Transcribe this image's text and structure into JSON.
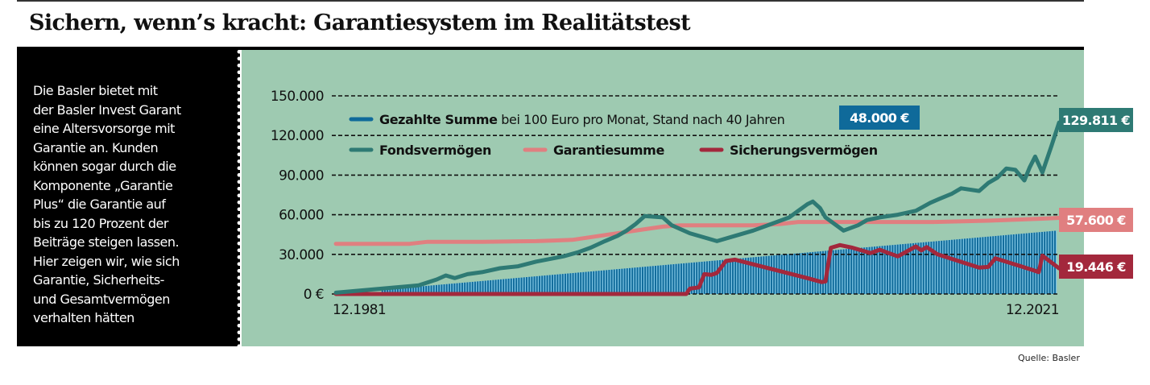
{
  "title": "Sichern, wenn’s kracht: Garantiesystem im Realitätstest",
  "intro_lines": [
    "Die Basler bietet mit",
    "der Basler Invest Garant",
    "eine Altersvorsorge mit",
    "Garantie an. Kunden",
    "können sogar durch die",
    "Komponente „Garantie",
    "Plus“ die Garantie auf",
    "bis zu 120 Prozent der",
    "Beiträge steigen lassen.",
    "Hier zeigen wir, wie sich",
    "Garantie, Sicherheits-",
    "und Gesamtvermögen",
    "verhalten hätten"
  ],
  "source": "Quelle: Basler",
  "colors": {
    "background": "#9ecab1",
    "paid": "#0f6a9a",
    "paid_stripe": "#7ec4e4",
    "fonds": "#2e7a74",
    "garantie": "#e07f80",
    "sicherung": "#a3283c"
  },
  "chart_data": {
    "type": "line",
    "title": "Sichern, wenn’s kracht: Garantiesystem im Realitätstest",
    "xlabel": "",
    "ylabel": "",
    "xlim": [
      1981.917,
      2021.917
    ],
    "ylim": [
      0,
      150000
    ],
    "grid": true,
    "legend_position": "top",
    "x_tick_labels": [
      "12.1981",
      "12.2021"
    ],
    "y_tick_labels": [
      "0 €",
      "30.000",
      "60.000",
      "90.000",
      "120.000",
      "150.000"
    ],
    "y_tick_values": [
      0,
      30000,
      60000,
      90000,
      120000,
      150000
    ],
    "legend": {
      "paid_bold": "Gezahlte Summe",
      "paid_rest": " bei 100 Euro pro Monat, Stand nach 40 Jahren",
      "fonds": "Fondsvermögen",
      "garantie": "Garantiesumme",
      "sicherung": "Sicherungsvermögen"
    },
    "end_labels": {
      "paid": "48.000 €",
      "fonds": "129.811 €",
      "garantie": "57.600 €",
      "sicherung": "19.446 €"
    },
    "series": [
      {
        "name": "Gezahlte Summe",
        "kind": "bars",
        "x": [
          1981.917,
          2021.917
        ],
        "values": [
          0,
          48000
        ]
      },
      {
        "name": "Fondsvermögen",
        "kind": "line",
        "x": [
          1981.92,
          1984.0,
          1986.5,
          1987.5,
          1988.0,
          1988.5,
          1989.2,
          1990.0,
          1991.0,
          1992.0,
          1993.0,
          1994.5,
          1995.3,
          1996.0,
          1996.8,
          1997.5,
          1998.0,
          1998.5,
          1999.0,
          2000.0,
          2000.5,
          2001.5,
          2002.5,
          2003.0,
          2004.0,
          2005.0,
          2006.0,
          2007.0,
          2007.5,
          2008.0,
          2008.3,
          2008.7,
          2009.0,
          2010.0,
          2010.8,
          2011.3,
          2012.0,
          2013.0,
          2014.0,
          2014.8,
          2015.3,
          2016.0,
          2016.5,
          2017.5,
          2018.0,
          2018.5,
          2019.0,
          2019.5,
          2020.0,
          2020.3,
          2020.6,
          2021.0,
          2021.5,
          2021.92
        ],
        "values": [
          1000,
          3500,
          6500,
          11000,
          14000,
          12000,
          15000,
          16500,
          19500,
          21000,
          24500,
          28500,
          31500,
          35000,
          40000,
          44000,
          48000,
          53000,
          59000,
          58000,
          52000,
          46000,
          42000,
          40000,
          44000,
          48000,
          53000,
          58000,
          63000,
          68000,
          70000,
          65000,
          58000,
          48000,
          52000,
          56000,
          58000,
          60000,
          63000,
          69000,
          72000,
          76000,
          80000,
          78000,
          84000,
          88000,
          95000,
          94000,
          86000,
          96000,
          104000,
          92000,
          112000,
          129811
        ]
      },
      {
        "name": "Garantiesumme",
        "kind": "line",
        "x": [
          1981.92,
          1986.0,
          1987.0,
          1990.0,
          1993.0,
          1994.0,
          1995.0,
          1997.0,
          1999.0,
          2000.0,
          2001.0,
          2005.0,
          2006.5,
          2007.5,
          2015.0,
          2018.0,
          2021.0,
          2021.92
        ],
        "values": [
          38000,
          38000,
          39500,
          39500,
          40000,
          40500,
          41000,
          45000,
          49000,
          51000,
          52000,
          52000,
          53000,
          54500,
          54500,
          55500,
          57000,
          57600
        ]
      },
      {
        "name": "Sicherungsvermögen",
        "kind": "line",
        "x": [
          1981.92,
          2001.3,
          2001.5,
          2002.0,
          2002.3,
          2002.7,
          2003.0,
          2003.5,
          2004.0,
          2008.0,
          2008.8,
          2009.0,
          2009.3,
          2009.8,
          2010.5,
          2011.5,
          2012.0,
          2012.5,
          2013.0,
          2014.0,
          2014.3,
          2014.6,
          2015.2,
          2017.5,
          2018.0,
          2018.4,
          2020.5,
          2020.8,
          2021.0,
          2021.92
        ],
        "values": [
          0,
          0,
          4000,
          5000,
          15000,
          14500,
          16000,
          25000,
          26000,
          12000,
          9000,
          9500,
          35000,
          37000,
          35000,
          31000,
          33500,
          31000,
          28500,
          36000,
          33000,
          35500,
          30000,
          20000,
          20500,
          27000,
          18000,
          16500,
          29000,
          19446
        ]
      }
    ]
  }
}
